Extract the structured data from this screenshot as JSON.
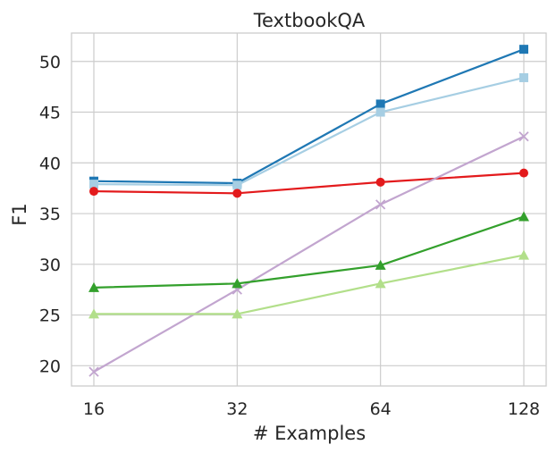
{
  "chart_data": {
    "type": "line",
    "title": "TextbookQA",
    "xlabel": "# Examples",
    "ylabel": "F1",
    "x": [
      16,
      32,
      64,
      128
    ],
    "x_ticks": [
      "16",
      "32",
      "64",
      "128"
    ],
    "x_scale": "log2",
    "ylim": [
      18,
      52.8
    ],
    "y_ticks": [
      "20",
      "25",
      "30",
      "35",
      "40",
      "45",
      "50"
    ],
    "grid": true,
    "legend": "none",
    "series": [
      {
        "color": "#1f78b4",
        "marker": "square",
        "values": [
          38.2,
          38.0,
          45.8,
          51.2
        ]
      },
      {
        "color": "#a6cee3",
        "marker": "square",
        "values": [
          37.9,
          37.8,
          45.0,
          48.4
        ]
      },
      {
        "color": "#e31a1c",
        "marker": "circle",
        "values": [
          37.2,
          37.0,
          38.1,
          39.0
        ]
      },
      {
        "color": "#c2a5cf",
        "marker": "x",
        "values": [
          19.4,
          27.5,
          35.9,
          42.6
        ]
      },
      {
        "color": "#33a02c",
        "marker": "triangle",
        "values": [
          27.7,
          28.1,
          29.9,
          34.7
        ]
      },
      {
        "color": "#b2df8a",
        "marker": "triangle",
        "values": [
          25.1,
          25.1,
          28.1,
          30.9
        ]
      }
    ]
  }
}
